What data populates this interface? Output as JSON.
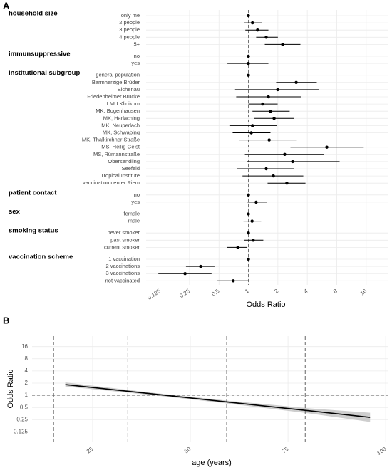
{
  "chart_data": [
    {
      "type": "forest",
      "panel": "A",
      "xlabel": "Odds Ratio",
      "log_x": true,
      "xlim": [
        0.09,
        27
      ],
      "xticks": [
        0.125,
        0.25,
        0.5,
        1,
        2,
        4,
        8,
        16
      ],
      "reference_line": 1,
      "grid": true,
      "color": "#000000",
      "groups": [
        {
          "name": "household size",
          "categories": [
            "only me",
            "2 people",
            "3 people",
            "4 people",
            "5+"
          ],
          "values": [
            1,
            1.1,
            1.24,
            1.52,
            2.24
          ],
          "lower": [
            null,
            0.9,
            0.93,
            1.2,
            1.47
          ],
          "upper": [
            null,
            1.37,
            1.6,
            2.0,
            3.4
          ]
        },
        {
          "name": "immunsuppressive",
          "categories": [
            "no",
            "yes"
          ],
          "values": [
            1,
            1.0
          ],
          "lower": [
            null,
            0.61
          ],
          "upper": [
            null,
            1.6
          ]
        },
        {
          "name": "institutional subgroup",
          "categories": [
            "general population",
            "Barmherzige Brüder",
            "Eichenau",
            "Friedenheimer Brücke",
            "LMU Klinikum",
            "MK, Bogenhausen",
            "MK, Harlaching",
            "MK, Neuperlach",
            "MK, Schwabing",
            "MK, Thalkirchner Straße",
            "MS, Heilig Geist",
            "MS, Rümannstraße",
            "Obersendling",
            "Seefeld",
            "Tropical Institute",
            "vaccination center Riem"
          ],
          "values": [
            1,
            3.08,
            1.99,
            1.6,
            1.4,
            1.68,
            1.83,
            1.1,
            1.07,
            1.63,
            6.33,
            2.35,
            2.83,
            1.52,
            1.8,
            2.47
          ],
          "lower": [
            null,
            1.92,
            0.73,
            0.75,
            1.0,
            1.1,
            1.14,
            0.65,
            0.69,
            0.8,
            2.69,
            0.92,
            0.97,
            0.76,
            0.87,
            1.57
          ],
          "upper": [
            null,
            5.0,
            5.3,
            3.46,
            1.99,
            2.64,
            2.93,
            1.96,
            1.68,
            3.13,
            15.1,
            5.9,
            8.56,
            2.93,
            3.64,
            3.83
          ]
        },
        {
          "name": "patient contact",
          "categories": [
            "no",
            "yes"
          ],
          "values": [
            1,
            1.2
          ],
          "lower": [
            null,
            0.98
          ],
          "upper": [
            null,
            1.55
          ]
        },
        {
          "name": "sex",
          "categories": [
            "female",
            "male"
          ],
          "values": [
            1,
            1.09
          ],
          "lower": [
            null,
            0.89
          ],
          "upper": [
            null,
            1.35
          ]
        },
        {
          "name": "smoking status",
          "categories": [
            "never smoker",
            "past smoker",
            "current smoker"
          ],
          "values": [
            1,
            1.12,
            0.78
          ],
          "lower": [
            null,
            0.9,
            0.6
          ],
          "upper": [
            null,
            1.42,
            0.97
          ]
        },
        {
          "name": "vaccination scheme",
          "categories": [
            "1 vaccination",
            "2 vaccinations",
            "3 vaccinations",
            "not vaccinated"
          ],
          "values": [
            1,
            0.325,
            0.225,
            0.7
          ],
          "lower": [
            null,
            0.23,
            0.12,
            0.48
          ],
          "upper": [
            null,
            0.45,
            0.42,
            1.0
          ]
        }
      ]
    },
    {
      "type": "line",
      "panel": "B",
      "xlabel": "age (years)",
      "ylabel": "Odds Ratio",
      "log_y": true,
      "xlim": [
        9.5,
        100.7
      ],
      "xticks": [
        25,
        50,
        75,
        100
      ],
      "ylim": [
        0.072,
        29
      ],
      "yticks": [
        0.125,
        0.25,
        0.5,
        1,
        2,
        4,
        8,
        16
      ],
      "reference_line": 1,
      "vlines": [
        15,
        34,
        59.3,
        79.4
      ],
      "grid": true,
      "color": "#000000",
      "ribbon_color": "#bdbdbd",
      "x": [
        18,
        40,
        60,
        80,
        96
      ],
      "values": [
        1.84,
        1.09,
        0.674,
        0.418,
        0.285
      ],
      "lower": [
        1.65,
        1.02,
        0.62,
        0.36,
        0.22
      ],
      "upper": [
        2.08,
        1.16,
        0.73,
        0.48,
        0.37
      ]
    }
  ]
}
